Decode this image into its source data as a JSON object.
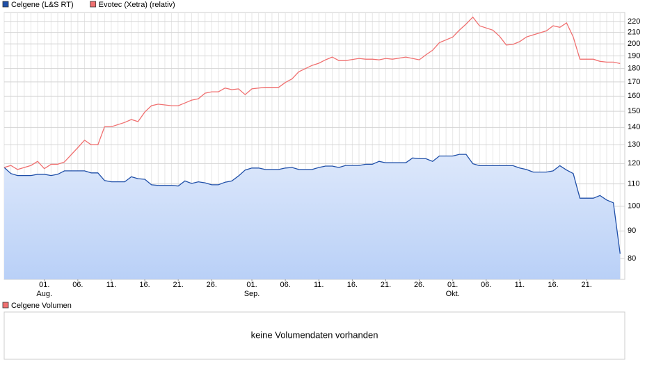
{
  "chart_data": {
    "type": "line",
    "log_scale": true,
    "grid": true,
    "x": [
      0,
      1,
      2,
      4,
      5,
      6,
      7,
      8,
      9,
      11,
      12,
      13,
      14,
      15,
      16,
      18,
      19,
      20,
      21,
      22,
      23,
      25,
      26,
      27,
      28,
      29,
      30,
      31,
      32,
      33,
      34,
      35,
      36,
      37,
      38,
      39,
      41,
      42,
      43,
      44,
      46,
      47,
      48,
      49,
      50,
      51,
      53,
      54,
      55,
      56,
      57,
      58,
      60,
      61,
      62,
      63,
      64,
      65,
      67,
      68,
      69,
      70,
      71,
      73,
      74,
      75,
      76,
      77,
      78,
      79,
      81,
      82,
      83,
      84,
      85,
      86,
      88,
      89,
      90,
      91,
      92
    ],
    "xlim": [
      0,
      92.7
    ],
    "xticks": [
      {
        "value": 6,
        "label": "01."
      },
      {
        "value": 11,
        "label": "06."
      },
      {
        "value": 16,
        "label": "11."
      },
      {
        "value": 21,
        "label": "16."
      },
      {
        "value": 26,
        "label": "21."
      },
      {
        "value": 31,
        "label": "26."
      },
      {
        "value": 37,
        "label": "01."
      },
      {
        "value": 42,
        "label": "06."
      },
      {
        "value": 47,
        "label": "11."
      },
      {
        "value": 52,
        "label": "16."
      },
      {
        "value": 57,
        "label": "21."
      },
      {
        "value": 62,
        "label": "26."
      },
      {
        "value": 67,
        "label": "01."
      },
      {
        "value": 72,
        "label": "06."
      },
      {
        "value": 77,
        "label": "11."
      },
      {
        "value": 82,
        "label": "16."
      },
      {
        "value": 87,
        "label": "21."
      }
    ],
    "xtick_months": [
      {
        "value": 6,
        "label": "Aug."
      },
      {
        "value": 37,
        "label": "Sep."
      },
      {
        "value": 67,
        "label": "Okt."
      }
    ],
    "ylim": [
      73.2,
      228.6
    ],
    "yticks": [
      80,
      90,
      100,
      110,
      120,
      130,
      140,
      150,
      160,
      170,
      180,
      190,
      200,
      210,
      220
    ],
    "series": [
      {
        "name": "Celgene (L&S RT)",
        "color": "#1f4fa8",
        "values": [
          118,
          115,
          114,
          114,
          114.6,
          114.6,
          114,
          114.6,
          116.3,
          116.3,
          116.3,
          115.3,
          115.3,
          111.6,
          111,
          111,
          113.4,
          112.5,
          112.2,
          109.6,
          109.3,
          109.3,
          109,
          111.4,
          110.2,
          111,
          110.5,
          109.6,
          109.6,
          110.8,
          111.4,
          113.8,
          116.7,
          117.7,
          117.7,
          117,
          117,
          117.7,
          118,
          117,
          117,
          118,
          118.7,
          118.7,
          118,
          119,
          119,
          119.6,
          119.6,
          121.1,
          120.4,
          120.4,
          120.4,
          122.9,
          122.5,
          122.5,
          121.1,
          123.9,
          123.9,
          124.8,
          124.8,
          119.9,
          118.9,
          118.9,
          118.9,
          118.9,
          118.9,
          117.7,
          117,
          115.7,
          115.7,
          116.3,
          118.9,
          116.7,
          115,
          103.5,
          103.5,
          104.7,
          102.7,
          101.5,
          81.7
        ]
      },
      {
        "name": "Evotec (Xetra) (relativ)",
        "color": "#f07070",
        "values": [
          118,
          119,
          117,
          119,
          121.1,
          117.4,
          119.6,
          119.6,
          120.8,
          128.4,
          132.6,
          130,
          130,
          140.4,
          140.4,
          143,
          144.8,
          143.5,
          149.5,
          153.6,
          154.6,
          153.6,
          153.6,
          155.4,
          157.3,
          158.2,
          162,
          163,
          163,
          165.6,
          164.5,
          165,
          161,
          165,
          165.6,
          166.1,
          166.1,
          169.6,
          172.2,
          177.5,
          182.4,
          184.1,
          186.8,
          189,
          186.2,
          186.2,
          187.9,
          187.3,
          187.3,
          186.8,
          187.9,
          187.3,
          189,
          187.9,
          186.8,
          190.8,
          194.6,
          201,
          205.9,
          212,
          217.6,
          224.2,
          216,
          212,
          206.5,
          199,
          199.5,
          201.9,
          205.9,
          207.8,
          211.4,
          216,
          214.6,
          218.7,
          206,
          187.3,
          187.3,
          185.6,
          185,
          185,
          183.9
        ]
      }
    ]
  },
  "volume_panel": {
    "legend": "Celgene Volumen",
    "color": "#f07070",
    "message": "keine Volumendaten vorhanden"
  }
}
